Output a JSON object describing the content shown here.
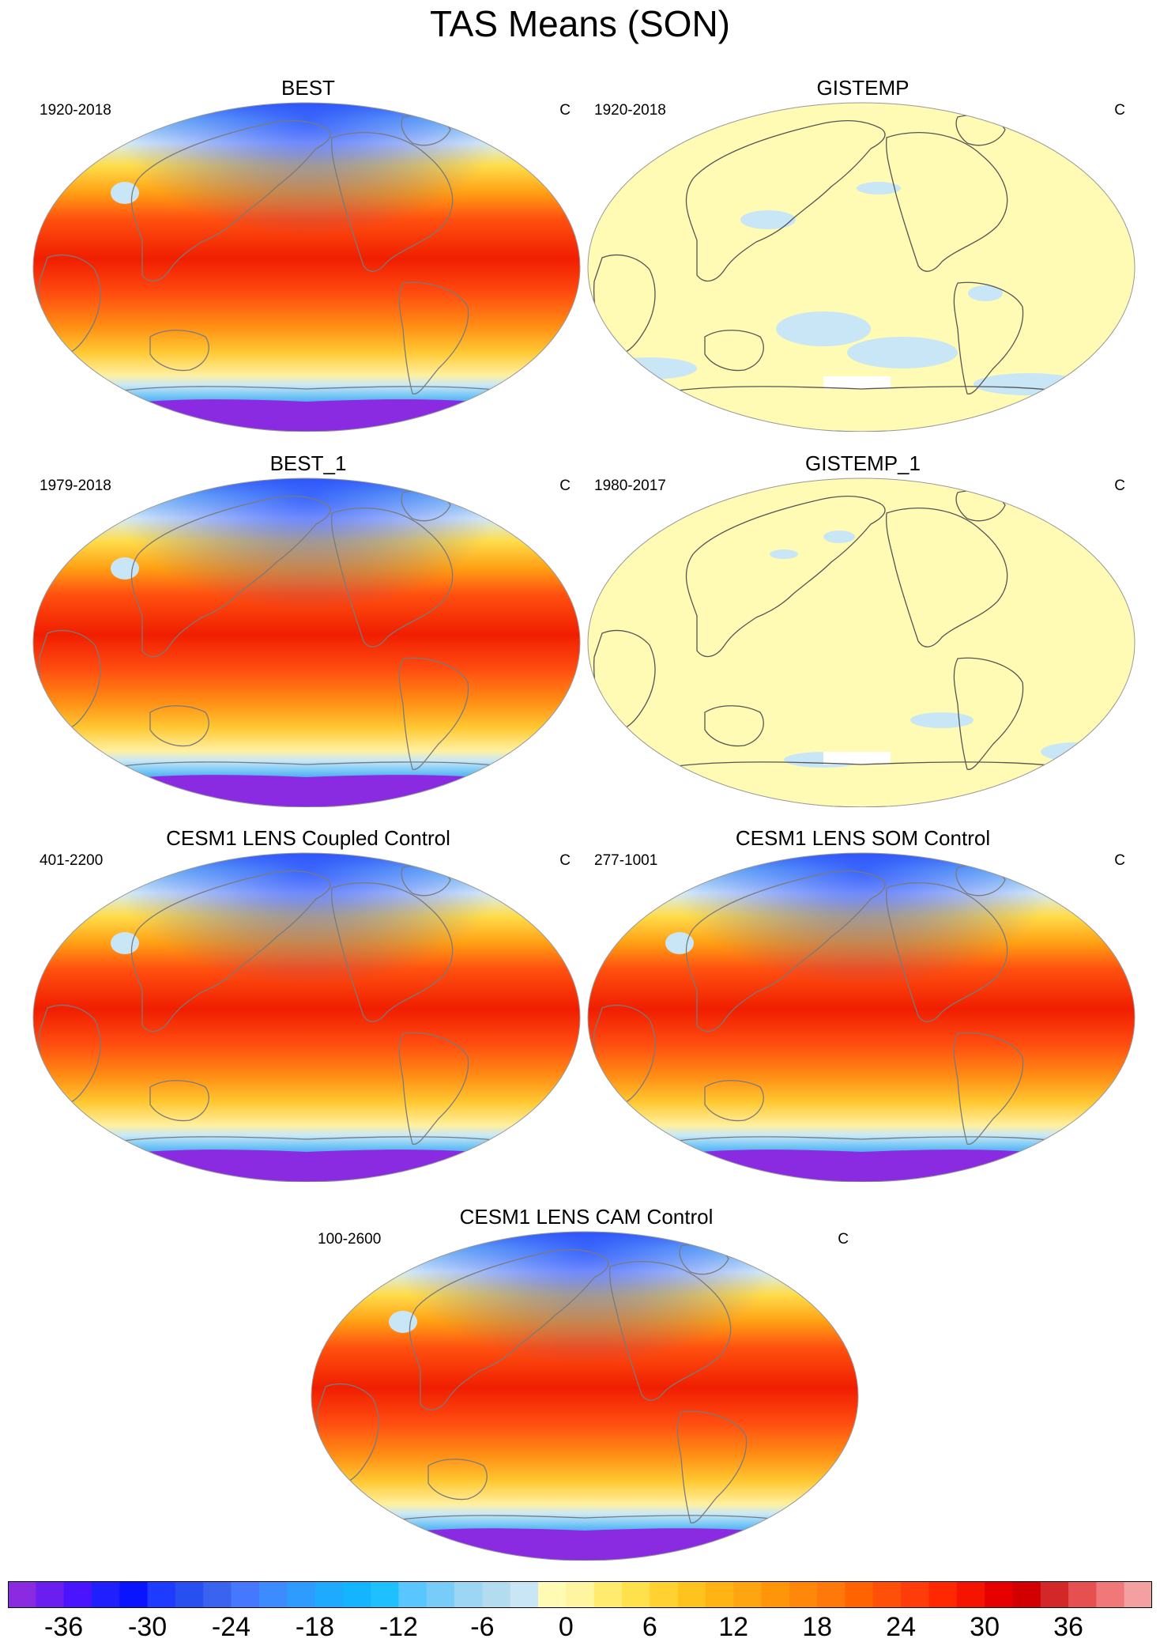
{
  "title": "TAS Means (SON)",
  "panels": [
    {
      "name": "BEST",
      "period": "1920-2018",
      "unit": "C",
      "style": "filled"
    },
    {
      "name": "GISTEMP",
      "period": "1920-2018",
      "unit": "C",
      "style": "anomaly"
    },
    {
      "name": "BEST_1",
      "period": "1979-2018",
      "unit": "C",
      "style": "filled"
    },
    {
      "name": "GISTEMP_1",
      "period": "1980-2017",
      "unit": "C",
      "style": "anomaly"
    },
    {
      "name": "CESM1 LENS Coupled Control",
      "period": "401-2200",
      "unit": "C",
      "style": "filled"
    },
    {
      "name": "CESM1 LENS SOM Control",
      "period": "277-1001",
      "unit": "C",
      "style": "filled"
    },
    {
      "name": "CESM1 LENS CAM Control",
      "period": "100-2600",
      "unit": "C",
      "style": "filled"
    }
  ],
  "colorbar": {
    "labels": [
      "-36",
      "-30",
      "-24",
      "-18",
      "-12",
      "-6",
      "0",
      "6",
      "12",
      "18",
      "24",
      "30",
      "36"
    ],
    "colors": [
      "#8a2be2",
      "#6a1ef0",
      "#4a14ff",
      "#2020ff",
      "#0a14ff",
      "#1e3cff",
      "#2850f0",
      "#3a64f0",
      "#4678ff",
      "#3c8cff",
      "#2e9cff",
      "#1eaaff",
      "#14b4ff",
      "#1ec0ff",
      "#5ac6ff",
      "#78cdf8",
      "#9cd6f4",
      "#b4dcf0",
      "#c8e6f6",
      "#fffab4",
      "#fff5a0",
      "#ffeb6e",
      "#ffe14b",
      "#ffd232",
      "#ffc31e",
      "#ffb414",
      "#ffa50f",
      "#ff960a",
      "#ff870a",
      "#ff780a",
      "#ff6400",
      "#ff500a",
      "#ff3c0a",
      "#ff2800",
      "#f51400",
      "#e60000",
      "#d20000",
      "#d22828",
      "#e65050",
      "#f07878",
      "#f5a0a0"
    ]
  }
}
